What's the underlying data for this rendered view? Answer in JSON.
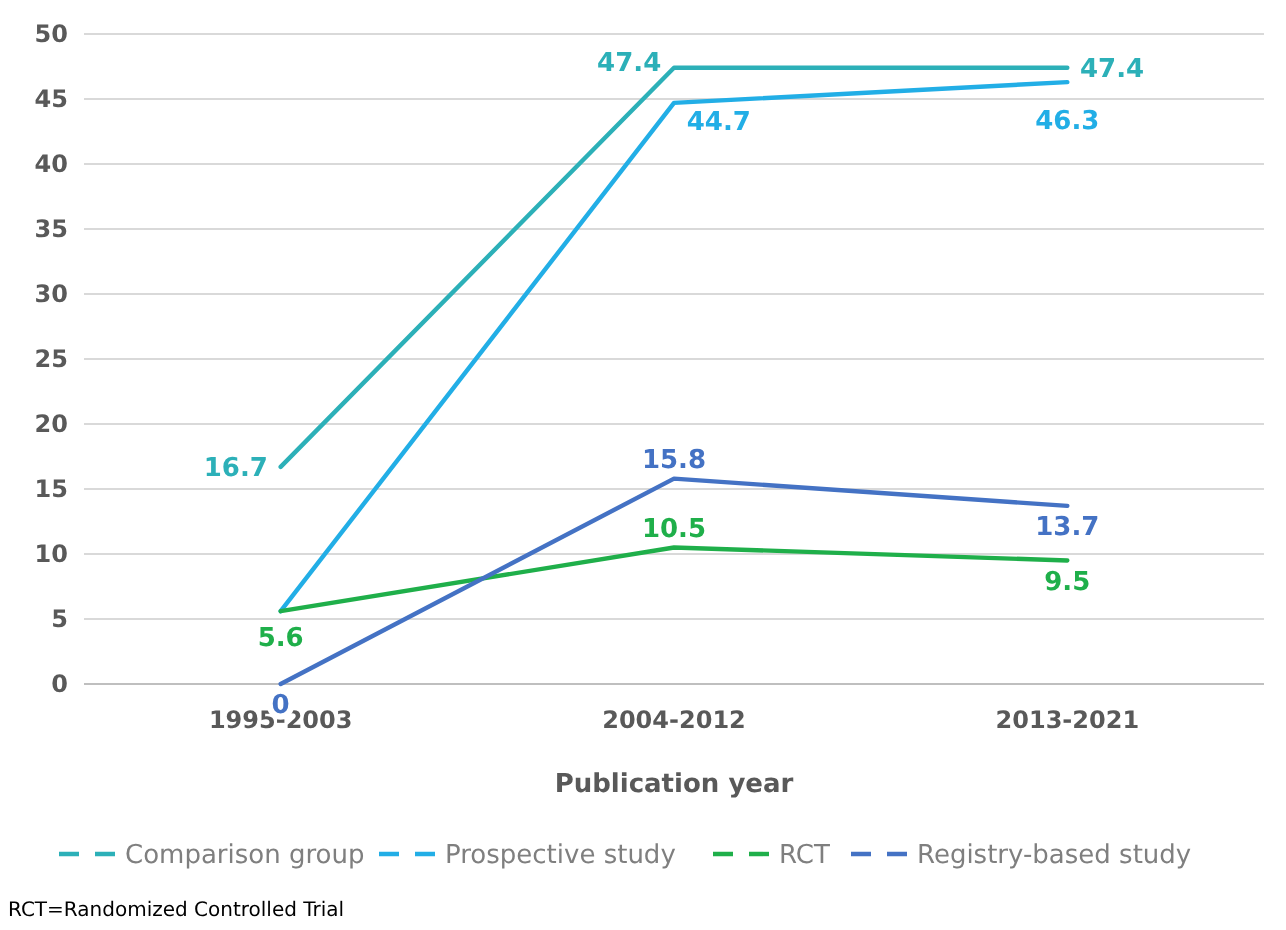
{
  "chart_data": {
    "type": "line",
    "xlabel": "Publication year",
    "categories": [
      "1995-2003",
      "2004-2012",
      "2013-2021"
    ],
    "ylim": [
      0,
      50
    ],
    "yticks": [
      0,
      5,
      10,
      15,
      20,
      25,
      30,
      35,
      40,
      45,
      50
    ],
    "grid": "y",
    "legend": "bottom",
    "marker": "none",
    "line_style": "solid",
    "series": [
      {
        "name": "Comparison group",
        "color": "#2cb0b8",
        "values": [
          16.7,
          47.4,
          47.4
        ],
        "value_labels": [
          "16.7",
          "47.4",
          "47.4"
        ]
      },
      {
        "name": "Prospective study",
        "color": "#22aee6",
        "values": [
          5.6,
          44.7,
          46.3
        ],
        "value_labels": [
          null,
          "44.7",
          "46.3"
        ]
      },
      {
        "name": "RCT",
        "color": "#1faf4a",
        "values": [
          5.6,
          10.5,
          9.5
        ],
        "value_labels": [
          "5.6",
          "10.5",
          "9.5"
        ]
      },
      {
        "name": "Registry-based study",
        "color": "#4472c4",
        "values": [
          0,
          15.8,
          13.7
        ],
        "value_labels": [
          "0",
          "15.8",
          "13.7"
        ]
      }
    ],
    "annotations": [
      "RCT=Randomized Controlled Trial"
    ]
  }
}
